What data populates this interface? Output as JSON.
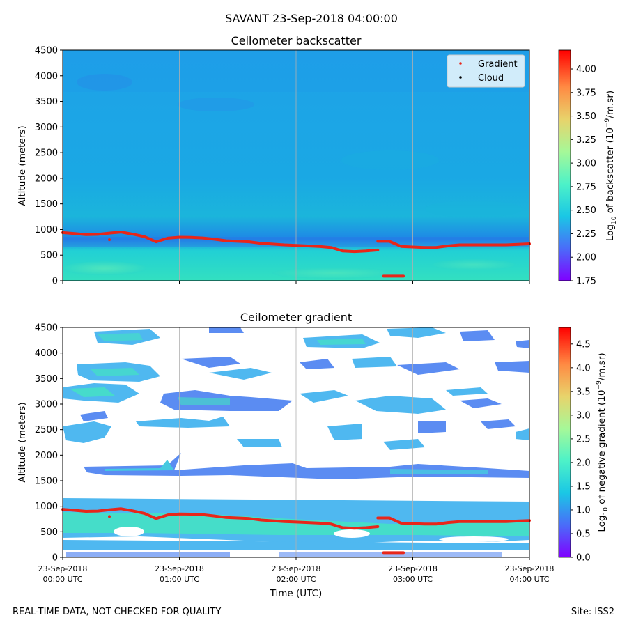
{
  "suptitle": "SAVANT 23-Sep-2018 04:00:00",
  "footer": {
    "left": "REAL-TIME DATA, NOT CHECKED FOR QUALITY",
    "right": "Site: ISS2"
  },
  "colors": {
    "gradient": "#e8261a",
    "cloud": "#000000",
    "grid": "#b0b0b0"
  },
  "chart_data": [
    {
      "type": "heatmap",
      "title": "Ceilometer backscatter",
      "xlabel": "",
      "ylabel": "Altitude (meters)",
      "ylim": [
        0,
        4500
      ],
      "yticks": [
        "0",
        "500",
        "1000",
        "1500",
        "2000",
        "2500",
        "3000",
        "3500",
        "4000",
        "4500"
      ],
      "xlim_hours": [
        0,
        4
      ],
      "grid_x": true,
      "colorbar": {
        "label": "Log10 of backscatter (10^-9/m.sr)",
        "label_main": "Log",
        "label_sub": "10",
        "label_mid": " of backscatter (10",
        "label_sup": "−9",
        "label_end": "/m.sr)",
        "range": [
          1.75,
          4.2
        ],
        "ticks": [
          "1.75",
          "2.00",
          "2.25",
          "2.50",
          "2.75",
          "3.00",
          "3.25",
          "3.50",
          "3.75",
          "4.00"
        ]
      },
      "legend": {
        "placement": "top-right",
        "entries": [
          "Gradient",
          "Cloud"
        ]
      },
      "gradient_series": {
        "name": "Gradient",
        "x": [
          0,
          0.1,
          0.2,
          0.3,
          0.4,
          0.5,
          0.6,
          0.7,
          0.8,
          0.9,
          1.0,
          1.1,
          1.2,
          1.3,
          1.4,
          1.5,
          1.6,
          1.7,
          1.8,
          1.9,
          2.0,
          2.1,
          2.2,
          2.3,
          2.4,
          2.5,
          2.6,
          2.7
        ],
        "y": [
          940,
          920,
          900,
          905,
          930,
          950,
          910,
          860,
          760,
          830,
          850,
          845,
          835,
          810,
          780,
          770,
          760,
          730,
          715,
          700,
          690,
          680,
          670,
          650,
          580,
          570,
          580,
          600
        ]
      },
      "gradient_series_2": {
        "x": [
          2.7,
          2.8,
          2.9,
          3.0,
          3.1,
          3.2,
          3.3,
          3.4,
          3.5,
          3.6,
          3.7,
          3.8,
          3.9,
          4.0
        ],
        "y": [
          770,
          770,
          670,
          660,
          650,
          650,
          680,
          700,
          700,
          700,
          700,
          700,
          710,
          720
        ]
      },
      "low_points": [
        {
          "x": 0.4,
          "y": 800
        }
      ],
      "low_segment": {
        "x": [
          2.75,
          2.92
        ],
        "y": 90
      }
    },
    {
      "type": "heatmap",
      "title": "Ceilometer gradient",
      "xlabel": "Time (UTC)",
      "ylabel": "Altitude (meters)",
      "ylim": [
        0,
        4500
      ],
      "yticks": [
        "0",
        "500",
        "1000",
        "1500",
        "2000",
        "2500",
        "3000",
        "3500",
        "4000",
        "4500"
      ],
      "xticks": [
        {
          "date": "23-Sep-2018",
          "time": "00:00 UTC"
        },
        {
          "date": "23-Sep-2018",
          "time": "01:00 UTC"
        },
        {
          "date": "23-Sep-2018",
          "time": "02:00 UTC"
        },
        {
          "date": "23-Sep-2018",
          "time": "03:00 UTC"
        },
        {
          "date": "23-Sep-2018",
          "time": "04:00 UTC"
        }
      ],
      "grid_x": true,
      "colorbar": {
        "label": "Log10 of negative gradient (10^-9/m.sr)",
        "label_main": "Log",
        "label_sub": "10",
        "label_mid": " of negative gradient (10",
        "label_sup": "−9",
        "label_end": "/m.sr)",
        "range": [
          0,
          4.85
        ],
        "ticks": [
          "0.0",
          "0.5",
          "1.0",
          "1.5",
          "2.0",
          "2.5",
          "3.0",
          "3.5",
          "4.0",
          "4.5"
        ]
      }
    }
  ]
}
